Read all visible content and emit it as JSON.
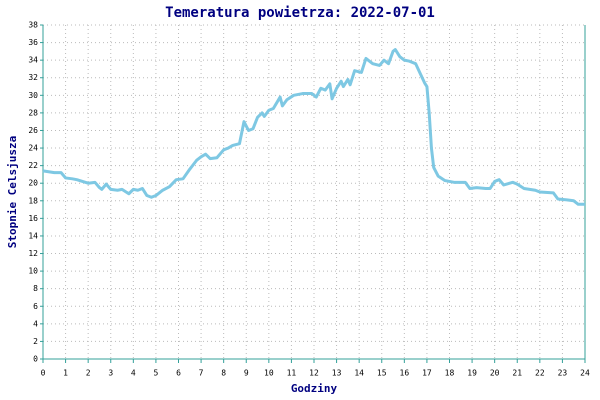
{
  "chart_data": {
    "type": "line",
    "title": "Temeratura powietrza: 2022-07-01",
    "xlabel": "Godziny",
    "ylabel": "Stopnie Celsjusza",
    "x": [
      0,
      0.5,
      0.8,
      1.0,
      1.3,
      1.5,
      2.0,
      2.3,
      2.5,
      2.6,
      2.8,
      3.0,
      3.3,
      3.5,
      3.8,
      4.0,
      4.2,
      4.4,
      4.6,
      4.8,
      5.0,
      5.3,
      5.6,
      5.9,
      6.2,
      6.5,
      6.8,
      7.0,
      7.2,
      7.4,
      7.7,
      8.0,
      8.2,
      8.4,
      8.7,
      8.9,
      9.1,
      9.3,
      9.5,
      9.7,
      9.8,
      10.0,
      10.2,
      10.5,
      10.6,
      10.8,
      11.1,
      11.5,
      11.9,
      12.1,
      12.3,
      12.5,
      12.7,
      12.8,
      13.0,
      13.2,
      13.3,
      13.5,
      13.6,
      13.8,
      14.1,
      14.3,
      14.6,
      14.9,
      15.1,
      15.3,
      15.5,
      15.6,
      15.8,
      16.0,
      16.2,
      16.5,
      16.7,
      16.9,
      17.0,
      17.1,
      17.2,
      17.3,
      17.5,
      17.8,
      18.2,
      18.7,
      18.9,
      19.2,
      19.6,
      19.8,
      20.0,
      20.2,
      20.4,
      20.8,
      21.0,
      21.3,
      21.8,
      22.0,
      22.6,
      22.8,
      23.2,
      23.5,
      23.7,
      24.0
    ],
    "values": [
      21.4,
      21.2,
      21.2,
      20.6,
      20.5,
      20.4,
      20.0,
      20.1,
      19.5,
      19.3,
      19.9,
      19.3,
      19.2,
      19.3,
      18.8,
      19.3,
      19.2,
      19.4,
      18.6,
      18.4,
      18.6,
      19.2,
      19.6,
      20.4,
      20.5,
      21.6,
      22.6,
      23.0,
      23.3,
      22.8,
      22.9,
      23.8,
      24.0,
      24.3,
      24.5,
      27.0,
      26.0,
      26.2,
      27.5,
      28.0,
      27.6,
      28.3,
      28.5,
      29.8,
      28.8,
      29.5,
      30.0,
      30.2,
      30.2,
      29.8,
      30.8,
      30.6,
      31.3,
      29.6,
      30.8,
      31.6,
      31.0,
      31.8,
      31.2,
      32.8,
      32.6,
      34.2,
      33.6,
      33.4,
      34.0,
      33.6,
      35.0,
      35.2,
      34.4,
      34.0,
      33.9,
      33.6,
      32.5,
      31.4,
      31.0,
      28,
      24,
      21.8,
      20.8,
      20.3,
      20.1,
      20.1,
      19.4,
      19.5,
      19.4,
      19.4,
      20.2,
      20.4,
      19.8,
      20.1,
      19.9,
      19.4,
      19.2,
      19.0,
      18.9,
      18.2,
      18.1,
      18.0,
      17.6,
      17.6
    ],
    "color": "#7ec8e3",
    "xlim": [
      0,
      24
    ],
    "xticks": [
      0,
      1,
      2,
      3,
      4,
      5,
      6,
      7,
      8,
      9,
      10,
      11,
      12,
      13,
      14,
      15,
      16,
      17,
      18,
      19,
      20,
      21,
      22,
      23,
      24
    ],
    "ylim": [
      0,
      38
    ],
    "yticks": [
      0,
      2,
      4,
      6,
      8,
      10,
      12,
      14,
      16,
      18,
      20,
      22,
      24,
      26,
      28,
      30,
      32,
      34,
      36,
      38
    ],
    "grid": true
  }
}
